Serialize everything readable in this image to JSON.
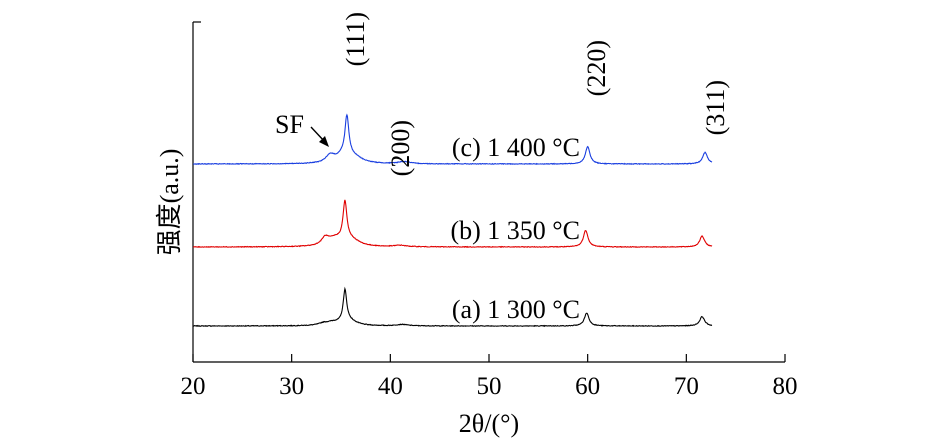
{
  "chart_data": {
    "type": "line",
    "title": "",
    "xlabel": "2θ/(°)",
    "ylabel": "强度(a.u.)",
    "xlim": [
      20,
      80
    ],
    "xticks": [
      "20",
      "30",
      "40",
      "50",
      "60",
      "70",
      "80"
    ],
    "y_tick_labels": false,
    "grid": false,
    "legend": "none",
    "series": [
      {
        "name": "(a) 1 300 °C",
        "color": "#000000",
        "baseline": 0.0,
        "peaks": [
          {
            "x": 33.2,
            "h": 0.05,
            "w": 0.55
          },
          {
            "x": 34.2,
            "h": 0.09,
            "w": 0.9
          },
          {
            "x": 35.4,
            "h": 0.9,
            "w": 0.22
          },
          {
            "x": 35.9,
            "h": 0.12,
            "w": 0.9
          },
          {
            "x": 41.2,
            "h": 0.04,
            "w": 0.7
          },
          {
            "x": 59.9,
            "h": 0.36,
            "w": 0.28
          },
          {
            "x": 71.6,
            "h": 0.26,
            "w": 0.3
          }
        ]
      },
      {
        "name": "(b) 1 350 °C",
        "color": "#e00000",
        "baseline": 1.0,
        "peaks": [
          {
            "x": 33.4,
            "h": 0.2,
            "w": 0.45
          },
          {
            "x": 34.4,
            "h": 0.2,
            "w": 0.9
          },
          {
            "x": 35.4,
            "h": 1.1,
            "w": 0.24
          },
          {
            "x": 36.1,
            "h": 0.16,
            "w": 1.0
          },
          {
            "x": 41.0,
            "h": 0.04,
            "w": 0.7
          },
          {
            "x": 59.8,
            "h": 0.46,
            "w": 0.28
          },
          {
            "x": 71.6,
            "h": 0.3,
            "w": 0.3
          }
        ]
      },
      {
        "name": "(c) 1 400 °C",
        "color": "#1a3fe0",
        "baseline": 2.0,
        "peaks": [
          {
            "x": 33.9,
            "h": 0.2,
            "w": 0.5
          },
          {
            "x": 35.2,
            "h": 0.2,
            "w": 0.9
          },
          {
            "x": 35.6,
            "h": 1.1,
            "w": 0.24
          },
          {
            "x": 36.4,
            "h": 0.14,
            "w": 1.0
          },
          {
            "x": 41.4,
            "h": 0.06,
            "w": 0.7
          },
          {
            "x": 60.0,
            "h": 0.48,
            "w": 0.28
          },
          {
            "x": 71.9,
            "h": 0.32,
            "w": 0.3
          }
        ]
      }
    ],
    "annotations": [
      {
        "text": "(111)",
        "x": 35.6,
        "rotate": true
      },
      {
        "text": "(200)",
        "x": 40.6,
        "rotate": true
      },
      {
        "text": "(220)",
        "x": 60.0,
        "rotate": true
      },
      {
        "text": "(311)",
        "x": 71.9,
        "rotate": true
      },
      {
        "text": "SF",
        "x": 33.9,
        "arrow": true
      }
    ]
  }
}
